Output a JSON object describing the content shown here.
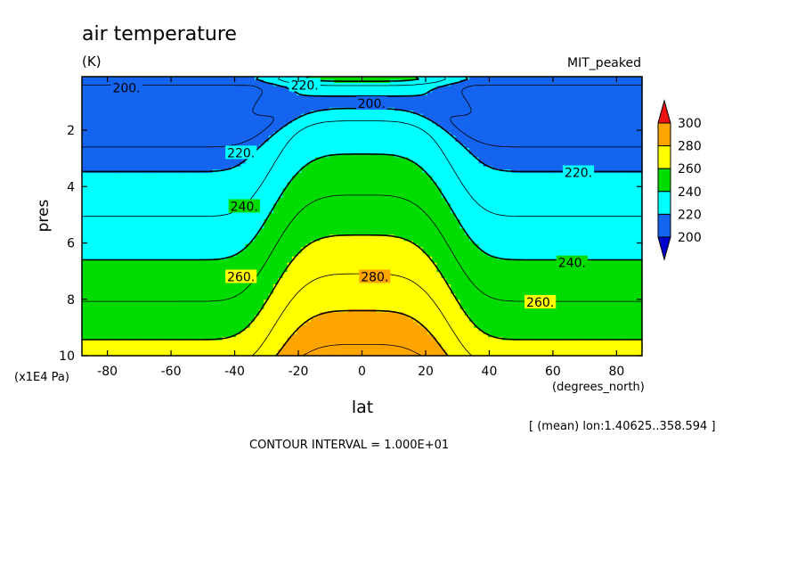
{
  "title": "air temperature",
  "units": "(K)",
  "dataset": "MIT_peaked",
  "footer": {
    "mean_note": "[ (mean) lon:1.40625..358.594 ]",
    "contour_interval": "CONTOUR INTERVAL = 1.000E+01"
  },
  "colors": {
    "c190": "#0000cc",
    "c200": "#1464f0",
    "c220": "#00ffff",
    "c240": "#00dc00",
    "c260": "#ffff00",
    "c280": "#ffa500",
    "c300": "#ee1111",
    "c_lowest": "#1464f0"
  },
  "chart_data": {
    "type": "contour",
    "x": {
      "label": "lat",
      "unit_label": "(degrees_north)",
      "range": [
        -88,
        88
      ],
      "ticks": [
        -80,
        -60,
        -40,
        -20,
        0,
        20,
        40,
        60,
        80
      ],
      "tick_labels": [
        "-80",
        "-60",
        "-40",
        "-20",
        "0",
        "20",
        "40",
        "60",
        "80"
      ]
    },
    "y": {
      "label": "pres",
      "unit_label": "(x1E4 Pa)",
      "range": [
        0.1,
        10
      ],
      "inverted": true,
      "ticks": [
        2,
        4,
        6,
        8,
        10
      ],
      "tick_labels": [
        "2",
        "4",
        "6",
        "8",
        "10"
      ]
    },
    "contour_levels": [
      200,
      210,
      220,
      230,
      240,
      250,
      260,
      270,
      280,
      290
    ],
    "labeled_contours": [
      {
        "text": "200.",
        "lat": -74,
        "pres": 0.5
      },
      {
        "text": "220.",
        "lat": -18,
        "pres": 0.4
      },
      {
        "text": "200.",
        "lat": 3,
        "pres": 1.05
      },
      {
        "text": "220.",
        "lat": -38,
        "pres": 2.8
      },
      {
        "text": "220.",
        "lat": 68,
        "pres": 3.5
      },
      {
        "text": "240.",
        "lat": -37,
        "pres": 4.7
      },
      {
        "text": "240.",
        "lat": 66,
        "pres": 6.7
      },
      {
        "text": "260.",
        "lat": -38,
        "pres": 7.2
      },
      {
        "text": "260.",
        "lat": 56,
        "pres": 8.1
      },
      {
        "text": "280.",
        "lat": 4,
        "pres": 7.2
      }
    ],
    "colorbar": {
      "levels": [
        200,
        220,
        240,
        260,
        280,
        300
      ],
      "labels": [
        "200",
        "220",
        "240",
        "260",
        "280",
        "300"
      ],
      "extend": "both"
    },
    "grid": false
  }
}
